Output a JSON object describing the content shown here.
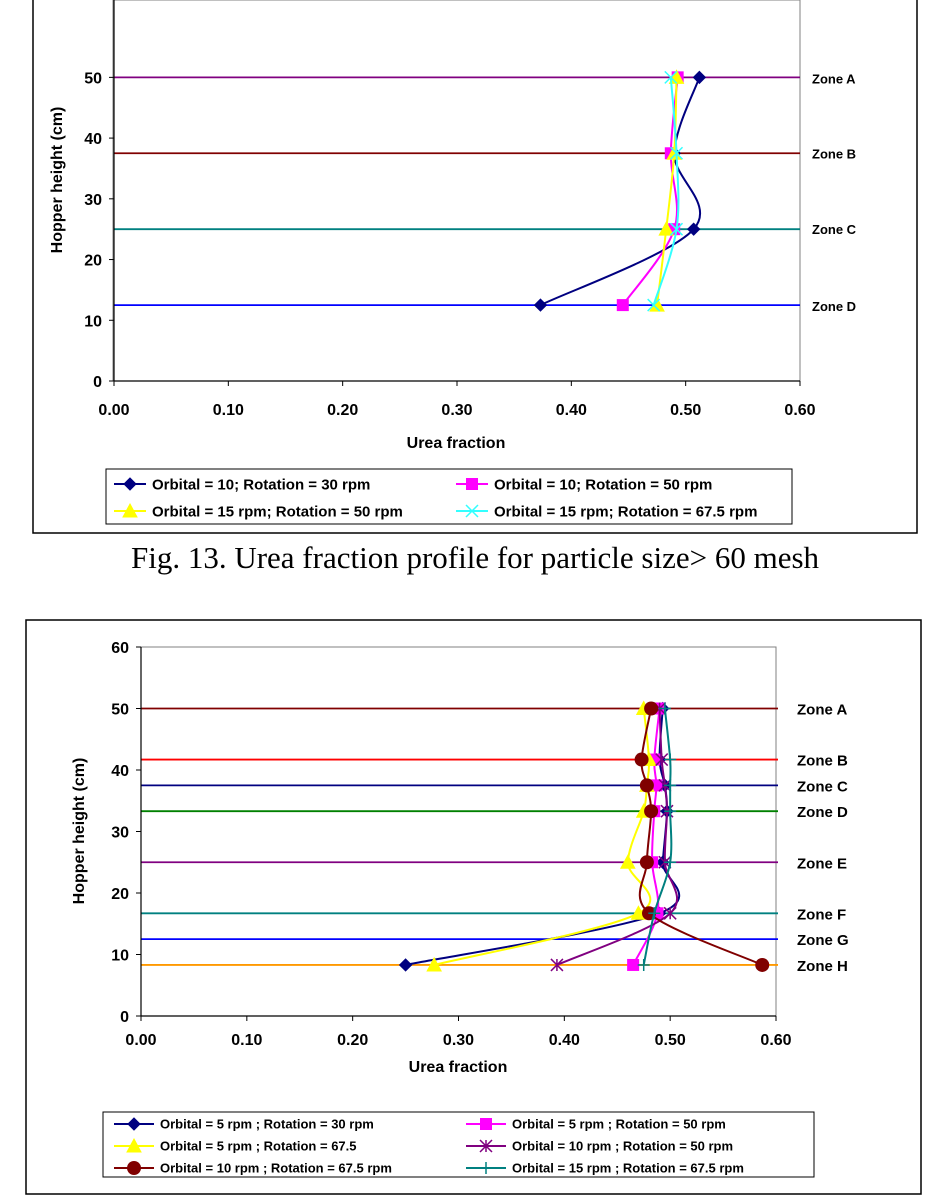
{
  "caption": "Fig. 13. Urea fraction profile for particle size> 60 mesh",
  "chart_data": [
    {
      "type": "line",
      "xlabel": "Urea fraction",
      "ylabel": "Hopper height (cm)",
      "xlim": [
        0,
        0.6
      ],
      "ylim": [
        0,
        55
      ],
      "xticks": [
        "0.00",
        "0.10",
        "0.20",
        "0.30",
        "0.40",
        "0.50",
        "0.60"
      ],
      "yticks": [
        "0",
        "10",
        "20",
        "30",
        "40",
        "50"
      ],
      "zones": [
        {
          "label": "Zone A",
          "y": 50,
          "color": "#800080"
        },
        {
          "label": "Zone B",
          "y": 37.5,
          "color": "#800000"
        },
        {
          "label": "Zone C",
          "y": 25,
          "color": "#008080"
        },
        {
          "label": "Zone D",
          "y": 12.5,
          "color": "#0000ff"
        }
      ],
      "series": [
        {
          "name": "Orbital = 10; Rotation = 30 rpm",
          "color": "#000080",
          "marker": "diamond",
          "x": [
            0.373,
            0.507,
            0.49,
            0.512
          ],
          "y": [
            12.5,
            25,
            37.5,
            50
          ]
        },
        {
          "name": "Orbital = 10; Rotation = 50 rpm",
          "color": "#ff00ff",
          "marker": "square",
          "x": [
            0.445,
            0.49,
            0.487,
            0.493
          ],
          "y": [
            12.5,
            25,
            37.5,
            50
          ]
        },
        {
          "name": "Orbital = 15 rpm; Rotation = 50 rpm",
          "color": "#ffff00",
          "marker": "triangle",
          "x": [
            0.475,
            0.483,
            0.49,
            0.492
          ],
          "y": [
            12.5,
            25,
            37.5,
            50
          ]
        },
        {
          "name": "Orbital = 15 rpm; Rotation = 67.5 rpm",
          "color": "#33ffff",
          "marker": "x",
          "x": [
            0.472,
            0.492,
            0.492,
            0.487
          ],
          "y": [
            12.5,
            25,
            37.5,
            50
          ]
        }
      ]
    },
    {
      "type": "line",
      "xlabel": "Urea fraction",
      "ylabel": "Hopper height (cm)",
      "xlim": [
        0,
        0.6
      ],
      "ylim": [
        0,
        60
      ],
      "xticks": [
        "0.00",
        "0.10",
        "0.20",
        "0.30",
        "0.40",
        "0.50",
        "0.60"
      ],
      "yticks": [
        "0",
        "10",
        "20",
        "30",
        "40",
        "50",
        "60"
      ],
      "zones": [
        {
          "label": "Zone A",
          "y": 50,
          "color": "#800000"
        },
        {
          "label": "Zone B",
          "y": 41.7,
          "color": "#ff0000"
        },
        {
          "label": "Zone C",
          "y": 37.5,
          "color": "#000080"
        },
        {
          "label": "Zone D",
          "y": 33.3,
          "color": "#008000"
        },
        {
          "label": "Zone E",
          "y": 25,
          "color": "#800080"
        },
        {
          "label": "Zone F",
          "y": 16.7,
          "color": "#008080"
        },
        {
          "label": "Zone G",
          "y": 12.5,
          "color": "#0000ff"
        },
        {
          "label": "Zone H",
          "y": 8.3,
          "color": "#ff9900"
        }
      ],
      "series": [
        {
          "name": "Orbital = 5 rpm ; Rotation = 30 rpm",
          "color": "#000080",
          "marker": "diamond",
          "x": [
            0.25,
            0.49,
            0.493,
            0.497,
            0.495,
            0.49,
            0.493
          ],
          "y": [
            8.3,
            16.7,
            25,
            33.3,
            37.5,
            41.7,
            50
          ]
        },
        {
          "name": "Orbital = 5 rpm ; Rotation = 50 rpm",
          "color": "#ff00ff",
          "marker": "square",
          "x": [
            0.465,
            0.488,
            0.483,
            0.485,
            0.487,
            0.485,
            0.49
          ],
          "y": [
            8.3,
            16.7,
            25,
            33.3,
            37.5,
            41.7,
            50
          ]
        },
        {
          "name": "Orbital = 5 rpm ; Rotation = 67.5",
          "color": "#ffff00",
          "marker": "triangle",
          "x": [
            0.277,
            0.47,
            0.46,
            0.475,
            0.478,
            0.48,
            0.475
          ],
          "y": [
            8.3,
            16.7,
            25,
            33.3,
            37.5,
            41.7,
            50
          ]
        },
        {
          "name": "Orbital = 10 rpm ; Rotation = 50 rpm",
          "color": "#800080",
          "marker": "star",
          "x": [
            0.393,
            0.5,
            0.495,
            0.497,
            0.495,
            0.492,
            0.49
          ],
          "y": [
            8.3,
            16.7,
            25,
            33.3,
            37.5,
            41.7,
            50
          ]
        },
        {
          "name": "Orbital = 10 rpm ; Rotation = 67.5 rpm",
          "color": "#800000",
          "marker": "circle",
          "x": [
            0.587,
            0.48,
            0.478,
            0.482,
            0.478,
            0.473,
            0.482
          ],
          "y": [
            8.3,
            16.7,
            25,
            33.3,
            37.5,
            41.7,
            50
          ]
        },
        {
          "name": "Orbital = 15 rpm ; Rotation = 67.5 rpm",
          "color": "#008080",
          "marker": "plus",
          "x": [
            0.475,
            0.485,
            0.5,
            0.5,
            0.5,
            0.5,
            0.495
          ],
          "y": [
            8.3,
            16.7,
            25,
            33.3,
            37.5,
            41.7,
            50
          ]
        }
      ]
    }
  ]
}
